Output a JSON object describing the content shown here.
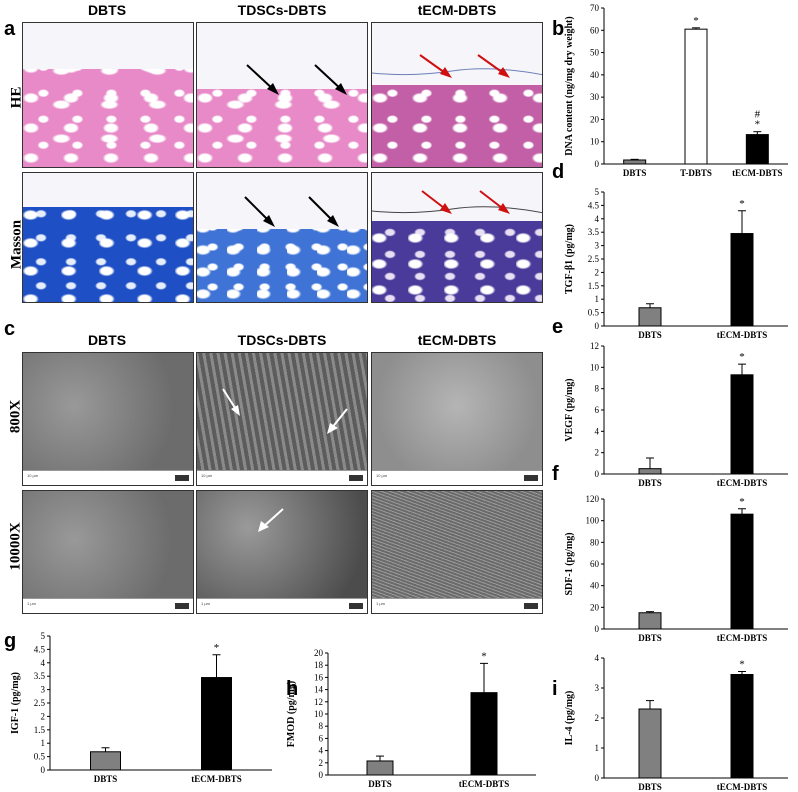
{
  "panels": {
    "a": "a",
    "b": "b",
    "c": "c",
    "d": "d",
    "e": "e",
    "f": "f",
    "g": "g",
    "h": "h",
    "i": "i"
  },
  "histology": {
    "columns": [
      "DBTS",
      "TDSCs-DBTS",
      "tECM-DBTS"
    ],
    "rows": [
      "HE",
      "Masson"
    ]
  },
  "sem": {
    "columns": [
      "DBTS",
      "TDSCs-DBTS",
      "tECM-DBTS"
    ],
    "rows": [
      "800X",
      "10000X"
    ]
  },
  "colors": {
    "gray_bar": "#808080",
    "black_bar": "#000000",
    "white_bar": "#ffffff",
    "red_arrow": "#d01010"
  },
  "chart_data": [
    {
      "id": "b",
      "type": "bar",
      "categories": [
        "DBTS",
        "T-DBTS",
        "tECM-DBTS"
      ],
      "values": [
        1.8,
        60.5,
        13.2
      ],
      "errors": [
        0.3,
        0.6,
        1.3
      ],
      "colors": [
        "#808080",
        "#ffffff",
        "#000000"
      ],
      "annotations": [
        "",
        "*",
        "#\n*"
      ],
      "ylabel": "DNA content (ng/mg dry weight)",
      "ylim": [
        0,
        70
      ],
      "yticks": [
        0,
        10,
        20,
        30,
        40,
        50,
        60,
        70
      ]
    },
    {
      "id": "d",
      "type": "bar",
      "categories": [
        "DBTS",
        "tECM-DBTS"
      ],
      "values": [
        0.68,
        3.45
      ],
      "errors": [
        0.15,
        0.85
      ],
      "colors": [
        "#808080",
        "#000000"
      ],
      "annotations": [
        "",
        "*"
      ],
      "ylabel": "TGF-β1 (pg/mg)",
      "ylim": [
        0,
        5
      ],
      "yticks": [
        0,
        0.5,
        1,
        1.5,
        2,
        2.5,
        3,
        3.5,
        4,
        4.5,
        5
      ]
    },
    {
      "id": "e",
      "type": "bar",
      "categories": [
        "DBTS",
        "tECM-DBTS"
      ],
      "values": [
        0.5,
        9.3
      ],
      "errors": [
        1.0,
        1.0
      ],
      "colors": [
        "#808080",
        "#000000"
      ],
      "annotations": [
        "",
        "*"
      ],
      "ylabel": "VEGF (pg/mg)",
      "ylim": [
        0,
        12
      ],
      "yticks": [
        0,
        2,
        4,
        6,
        8,
        10,
        12
      ]
    },
    {
      "id": "f",
      "type": "bar",
      "categories": [
        "DBTS",
        "tECM-DBTS"
      ],
      "values": [
        15,
        106
      ],
      "errors": [
        1,
        5
      ],
      "colors": [
        "#808080",
        "#000000"
      ],
      "annotations": [
        "",
        "*"
      ],
      "ylabel": "SDF-1 (pg/mg)",
      "ylim": [
        0,
        120
      ],
      "yticks": [
        0,
        20,
        40,
        60,
        80,
        100,
        120
      ]
    },
    {
      "id": "g",
      "type": "bar",
      "categories": [
        "DBTS",
        "tECM-DBTS"
      ],
      "values": [
        0.68,
        3.45
      ],
      "errors": [
        0.15,
        0.85
      ],
      "colors": [
        "#808080",
        "#000000"
      ],
      "annotations": [
        "",
        "*"
      ],
      "ylabel": "IGF-1 (pg/mg)",
      "ylim": [
        0,
        5
      ],
      "yticks": [
        0,
        0.5,
        1,
        1.5,
        2,
        2.5,
        3,
        3.5,
        4,
        4.5,
        5
      ]
    },
    {
      "id": "h",
      "type": "bar",
      "categories": [
        "DBTS",
        "tECM-DBTS"
      ],
      "values": [
        2.3,
        13.5
      ],
      "errors": [
        0.8,
        4.8
      ],
      "colors": [
        "#808080",
        "#000000"
      ],
      "annotations": [
        "",
        "*"
      ],
      "ylabel": "FMOD (pg/mg)",
      "ylim": [
        0,
        20
      ],
      "yticks": [
        0,
        2,
        4,
        6,
        8,
        10,
        12,
        14,
        16,
        18,
        20
      ]
    },
    {
      "id": "i",
      "type": "bar",
      "categories": [
        "DBTS",
        "tECM-DBTS"
      ],
      "values": [
        2.3,
        3.45
      ],
      "errors": [
        0.28,
        0.1
      ],
      "colors": [
        "#808080",
        "#000000"
      ],
      "annotations": [
        "",
        "*"
      ],
      "ylabel": "IL-4 (pg/mg)",
      "ylim": [
        0,
        4
      ],
      "yticks": [
        0,
        1,
        2,
        3,
        4
      ]
    }
  ]
}
